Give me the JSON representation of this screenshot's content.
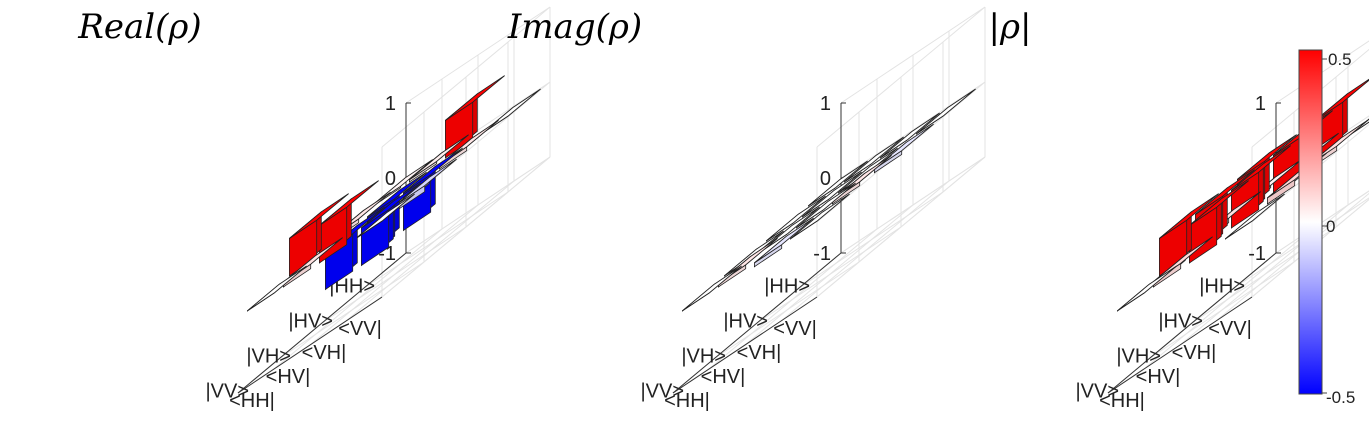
{
  "chart_data": [
    {
      "type": "bar3d",
      "title": "Real(ρ)",
      "row_labels": [
        "|HH>",
        "|HV>",
        "|VH>",
        "|VV>"
      ],
      "col_labels": [
        "<HH|",
        "<HV|",
        "<VH|",
        "<VV|"
      ],
      "zlim": [
        -1,
        1
      ],
      "zticks": [
        "1",
        "0",
        "-1"
      ],
      "values": [
        [
          0.02,
          0.03,
          0.5,
          0.0
        ],
        [
          0.05,
          -0.5,
          -0.5,
          0.05
        ],
        [
          0.5,
          -0.5,
          -0.5,
          -0.08
        ],
        [
          0.0,
          0.06,
          0.5,
          0.0
        ]
      ]
    },
    {
      "type": "bar3d",
      "title": "Imag(ρ)",
      "row_labels": [
        "|HH>",
        "|HV>",
        "|VH>",
        "|VV>"
      ],
      "col_labels": [
        "<HH|",
        "<HV|",
        "<VH|",
        "<VV|"
      ],
      "zlim": [
        -1,
        1
      ],
      "zticks": [
        "1",
        "0",
        "-1"
      ],
      "values": [
        [
          0.0,
          0.0,
          0.0,
          0.0
        ],
        [
          0.0,
          0.0,
          0.0,
          -0.05
        ],
        [
          0.0,
          0.0,
          0.0,
          0.05
        ],
        [
          0.0,
          0.05,
          -0.05,
          0.0
        ]
      ]
    },
    {
      "type": "bar3d",
      "title": "|ρ|",
      "row_labels": [
        "|HH>",
        "|HV>",
        "|VH>",
        "|VV>"
      ],
      "col_labels": [
        "<HH|",
        "<HV|",
        "<VH|",
        "<VV|"
      ],
      "zlim": [
        -1,
        1
      ],
      "zticks": [
        "1",
        "0",
        "-1"
      ],
      "values": [
        [
          0.03,
          0.05,
          0.5,
          0.0
        ],
        [
          0.06,
          0.5,
          0.5,
          0.06
        ],
        [
          0.5,
          0.5,
          0.5,
          0.08
        ],
        [
          0.0,
          0.07,
          0.5,
          0.0
        ]
      ]
    }
  ],
  "colorbar": {
    "range": [
      -0.5,
      0.5
    ],
    "tick_labels": [
      "0.5",
      "0",
      "-0.5"
    ],
    "color_low": "#0000ff",
    "color_mid": "#ffffff",
    "color_high": "#ff0000"
  }
}
